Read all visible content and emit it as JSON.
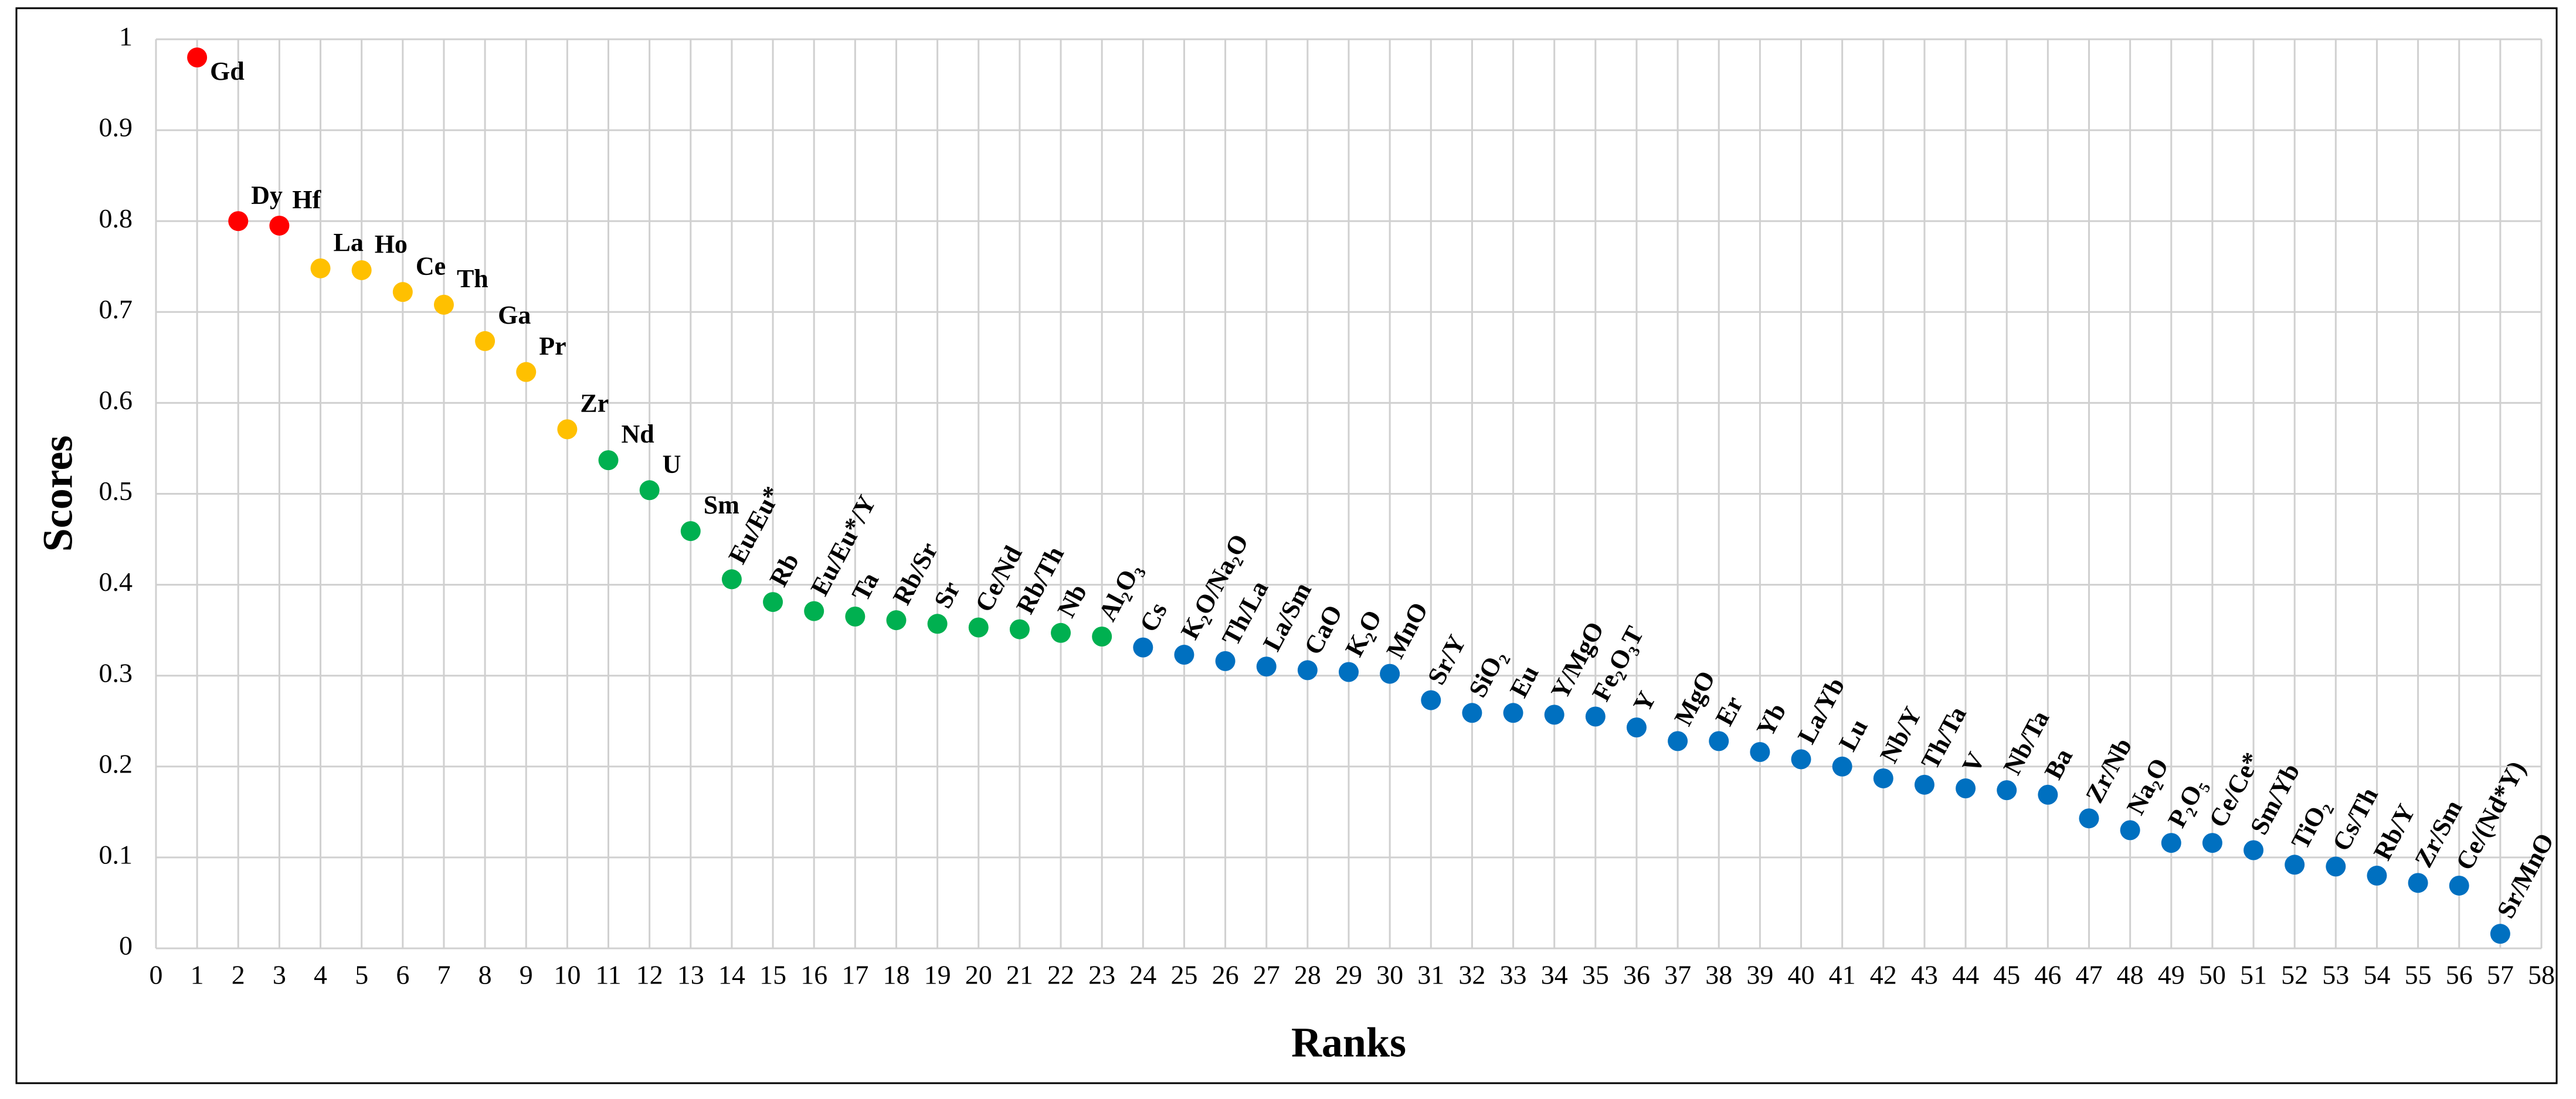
{
  "chart_data": {
    "type": "scatter",
    "x_label": "Ranks",
    "y_label": "Scores",
    "xlim": [
      0,
      58
    ],
    "xticks": [
      0,
      1,
      2,
      3,
      4,
      5,
      6,
      7,
      8,
      9,
      10,
      11,
      12,
      13,
      14,
      15,
      16,
      17,
      18,
      19,
      20,
      21,
      22,
      23,
      24,
      25,
      26,
      27,
      28,
      29,
      30,
      31,
      32,
      33,
      34,
      35,
      36,
      37,
      38,
      39,
      40,
      41,
      42,
      43,
      44,
      45,
      46,
      47,
      48,
      49,
      50,
      51,
      52,
      53,
      54,
      55,
      56,
      57,
      58
    ],
    "ylim": [
      0,
      1
    ],
    "yticks": [
      0,
      0.1,
      0.2,
      0.3,
      0.4,
      0.5,
      0.6,
      0.7,
      0.8,
      0.9,
      1
    ],
    "grid": true,
    "series": [
      {
        "color": "#ff0000",
        "x": [
          1,
          2,
          3
        ],
        "values": [
          0.98,
          0.8,
          0.795
        ],
        "labels": [
          "Gd",
          "Dy",
          "Hf"
        ]
      },
      {
        "color": "#ffc000",
        "x": [
          4,
          5,
          6,
          7,
          8,
          9,
          10
        ],
        "values": [
          0.748,
          0.746,
          0.722,
          0.708,
          0.668,
          0.634,
          0.571
        ],
        "labels": [
          "La",
          "Ho",
          "Ce",
          "Th",
          "Ga",
          "Pr",
          "Zr"
        ]
      },
      {
        "color": "#00b050",
        "x": [
          11,
          12,
          13,
          14,
          15,
          16,
          17,
          18,
          19,
          20,
          21,
          22,
          23
        ],
        "values": [
          0.537,
          0.504,
          0.459,
          0.406,
          0.381,
          0.371,
          0.365,
          0.361,
          0.357,
          0.353,
          0.351,
          0.347,
          0.343
        ],
        "labels": [
          "Nd",
          "U",
          "Sm",
          "Eu/Eu*",
          "Rb",
          "Eu/Eu*/Y",
          "Ta",
          "Rb/Sr",
          "Sr",
          "Ce/Nd",
          "Rb/Th",
          "Nb",
          "Al₂O₃"
        ]
      },
      {
        "color": "#0070c0",
        "x": [
          24,
          25,
          26,
          27,
          28,
          29,
          30,
          31,
          32,
          33,
          34,
          35,
          36,
          37,
          38,
          39,
          40,
          41,
          42,
          43,
          44,
          45,
          46,
          47,
          48,
          49,
          50,
          51,
          52,
          53,
          54,
          55,
          56,
          57
        ],
        "values": [
          0.331,
          0.323,
          0.316,
          0.31,
          0.306,
          0.304,
          0.302,
          0.273,
          0.259,
          0.259,
          0.257,
          0.255,
          0.243,
          0.228,
          0.228,
          0.216,
          0.208,
          0.2,
          0.187,
          0.18,
          0.176,
          0.174,
          0.169,
          0.143,
          0.13,
          0.116,
          0.116,
          0.108,
          0.092,
          0.09,
          0.08,
          0.072,
          0.069,
          0.016
        ],
        "labels": [
          "Cs",
          "K₂O/Na₂O",
          "Th/La",
          "La/Sm",
          "CaO",
          "K₂O",
          "MnO",
          "Sr/Y",
          "SiO₂",
          "Eu",
          "Y/MgO",
          "Fe₂O₃T",
          "Y",
          "MgO",
          "Er",
          "Yb",
          "La/Yb",
          "Lu",
          "Nb/Y",
          "Th/Ta",
          "V",
          "Nb/Ta",
          "Ba",
          "Zr/Nb",
          "Na₂O",
          "P₂O₅",
          "Ce/Ce*",
          "Sm/Yb",
          "TiO₂",
          "Cs/Th",
          "Rb/Y",
          "Zr/Sm",
          "Ce/(Nd*Y)",
          "Sr/MnO"
        ]
      }
    ]
  }
}
